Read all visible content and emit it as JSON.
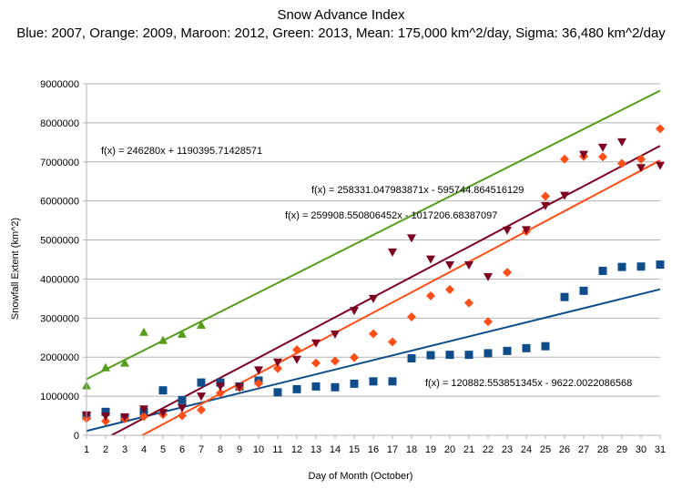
{
  "chart_data": {
    "type": "scatter",
    "title": "Snow Advance Index",
    "subtitle": "Blue: 2007, Orange: 2009, Maroon: 2012, Green: 2013, Mean: 175,000 km^2/day, Sigma: 36,480 km^2/day",
    "xlabel": "Day of Month (October)",
    "ylabel": "Snowfall Extent (km^2)",
    "xlim": [
      1,
      31
    ],
    "ylim": [
      0,
      9000000
    ],
    "x_ticks": [
      "1",
      "2",
      "3",
      "4",
      "5",
      "6",
      "7",
      "8",
      "9",
      "10",
      "11",
      "12",
      "13",
      "14",
      "15",
      "16",
      "17",
      "18",
      "19",
      "20",
      "21",
      "22",
      "23",
      "24",
      "25",
      "26",
      "27",
      "28",
      "29",
      "30",
      "31"
    ],
    "y_ticks": [
      "0",
      "1000000",
      "2000000",
      "3000000",
      "4000000",
      "5000000",
      "6000000",
      "7000000",
      "8000000",
      "9000000"
    ],
    "grid": true,
    "series": [
      {
        "color": "#0e4d8a",
        "marker": "square",
        "x": [
          1,
          2,
          3,
          4,
          5,
          6,
          7,
          8,
          9,
          10,
          11,
          12,
          13,
          14,
          15,
          16,
          17,
          18,
          19,
          20,
          21,
          22,
          23,
          24,
          25,
          26,
          27,
          28,
          29,
          30,
          31
        ],
        "y": [
          500000,
          600000,
          450000,
          600000,
          1150000,
          900000,
          1350000,
          1350000,
          1250000,
          1400000,
          1100000,
          1180000,
          1250000,
          1230000,
          1320000,
          1380000,
          1380000,
          1970000,
          2050000,
          2060000,
          2060000,
          2100000,
          2160000,
          2230000,
          2280000,
          3540000,
          3700000,
          4210000,
          4310000,
          4320000,
          4370000
        ]
      },
      {
        "color": "#ff4e17",
        "marker": "diamond",
        "x": [
          1,
          2,
          3,
          4,
          5,
          6,
          7,
          8,
          9,
          10,
          11,
          12,
          13,
          14,
          15,
          16,
          17,
          18,
          19,
          20,
          21,
          22,
          23,
          24,
          25,
          26,
          27,
          28,
          29,
          30,
          31
        ],
        "y": [
          430000,
          360000,
          420000,
          480000,
          530000,
          500000,
          650000,
          1080000,
          1220000,
          1330000,
          1710000,
          2190000,
          1850000,
          1900000,
          1990000,
          2600000,
          2390000,
          3030000,
          3570000,
          3730000,
          3390000,
          2910000,
          4170000,
          5220000,
          6120000,
          7070000,
          7140000,
          7130000,
          6960000,
          7070000,
          7850000
        ]
      },
      {
        "color": "#7d0021",
        "marker": "triangle-down",
        "x": [
          1,
          2,
          3,
          4,
          5,
          6,
          7,
          8,
          9,
          10,
          11,
          12,
          13,
          14,
          15,
          16,
          17,
          18,
          19,
          20,
          21,
          22,
          23,
          24,
          25,
          26,
          27,
          28,
          29,
          30,
          31
        ],
        "y": [
          520000,
          490000,
          470000,
          670000,
          580000,
          700000,
          1000000,
          1250000,
          1240000,
          1670000,
          1870000,
          1940000,
          2360000,
          2590000,
          3190000,
          3500000,
          4690000,
          5050000,
          4510000,
          4360000,
          4360000,
          4060000,
          5250000,
          5260000,
          5880000,
          6140000,
          7190000,
          7370000,
          7510000,
          6850000,
          6910000
        ]
      },
      {
        "color": "#579d1c",
        "marker": "triangle-up",
        "x": [
          1,
          2,
          3,
          4,
          5,
          6,
          7
        ],
        "y": [
          1270000,
          1730000,
          1850000,
          2640000,
          2430000,
          2590000,
          2820000
        ]
      }
    ],
    "trendlines": [
      {
        "color": "#0e4d8a",
        "slope": 120882.553851345,
        "intercept": -9622.0022086568,
        "x_range": [
          1,
          31
        ],
        "label": "f(x) = 120882.553851345x - 9622.0022086568"
      },
      {
        "color": "#ff4e17",
        "slope": 259908.550806452,
        "intercept": -1017206.68387097,
        "x_range": [
          1,
          31
        ],
        "label": "f(x) = 259908.550806452x - 1017206.68387097"
      },
      {
        "color": "#7d0021",
        "slope": 258331.047983871,
        "intercept": -595744.864516129,
        "x_range": [
          1,
          31
        ],
        "label": "f(x) = 258331.047983871x - 595744.864516129"
      },
      {
        "color": "#579d1c",
        "slope": 246280,
        "intercept": 1190395.71428571,
        "x_range": [
          1,
          31
        ],
        "label": "f(x) = 246280x + 1190395.71428571"
      }
    ]
  }
}
